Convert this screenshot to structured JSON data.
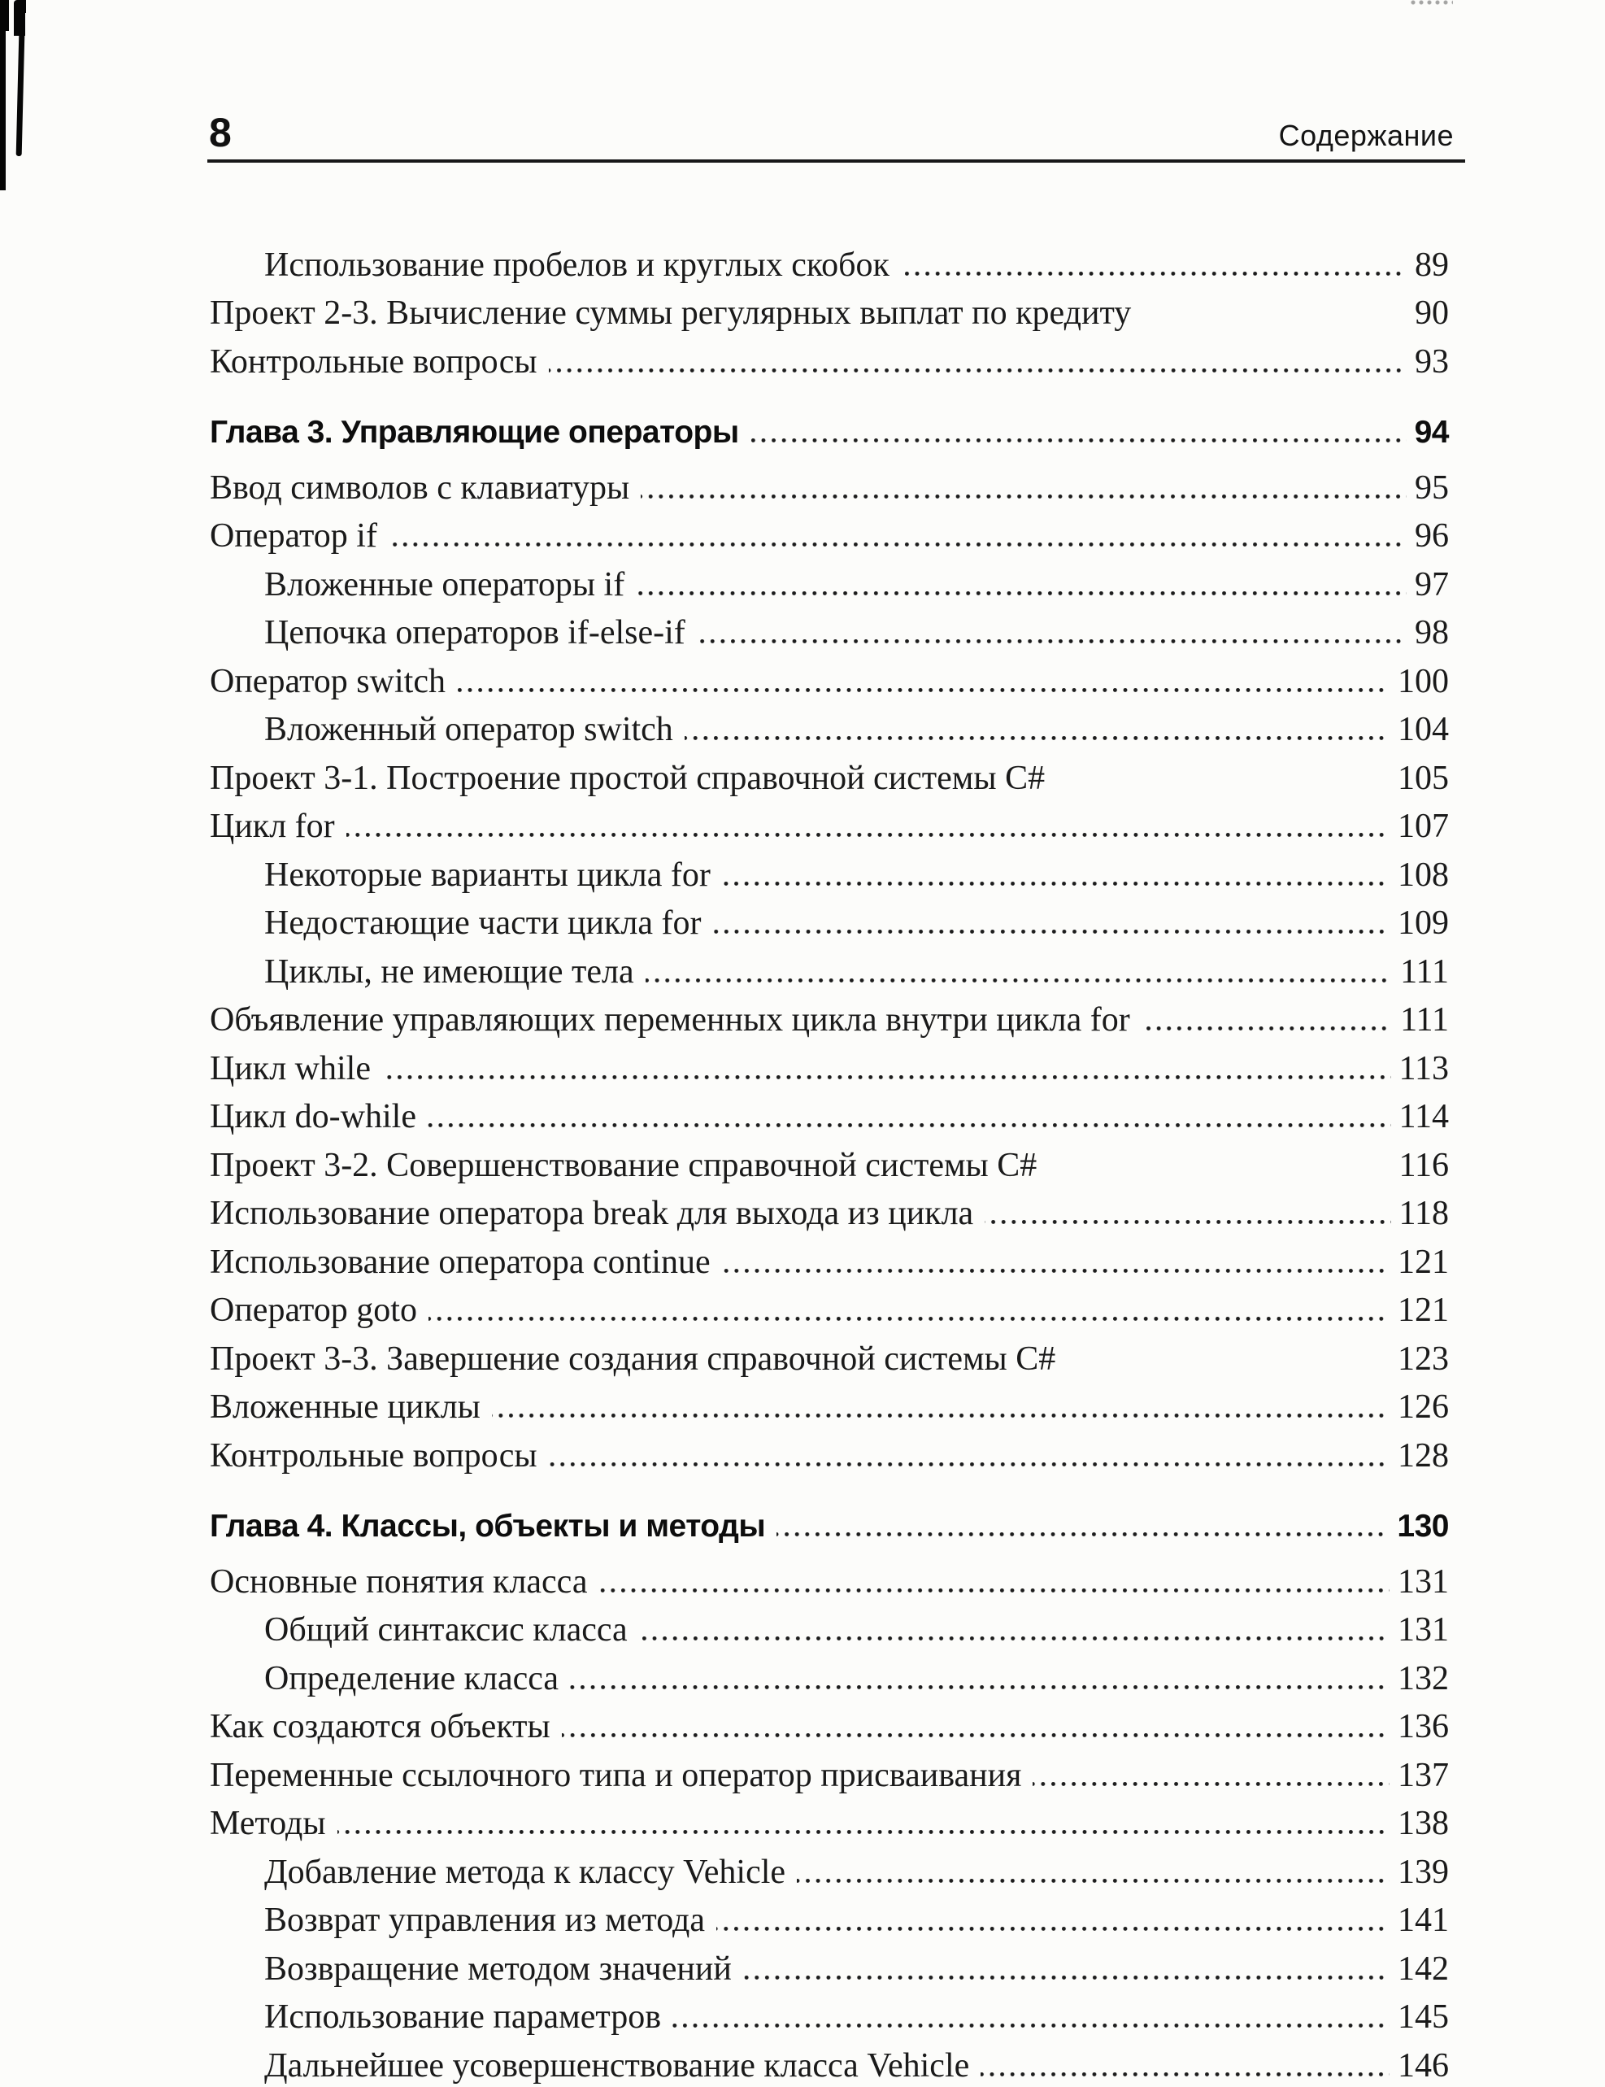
{
  "header": {
    "page_number": "8",
    "running_title": "Содержание"
  },
  "toc": {
    "entries": [
      {
        "label": "Использование пробелов и круглых скобок",
        "page": "89",
        "level": 2,
        "chapter": false,
        "leader": true
      },
      {
        "label": "Проект 2-3. Вычисление суммы регулярных выплат по кредиту",
        "page": "90",
        "level": 1,
        "chapter": false,
        "leader": false
      },
      {
        "label": "Контрольные вопросы",
        "page": "93",
        "level": 1,
        "chapter": false,
        "leader": true
      },
      {
        "label": "Глава 3. Управляющие операторы",
        "page": "94",
        "level": 1,
        "chapter": true,
        "leader": true
      },
      {
        "label": "Ввод символов с клавиатуры",
        "page": "95",
        "level": 1,
        "chapter": false,
        "leader": true
      },
      {
        "label": "Оператор if",
        "page": "96",
        "level": 1,
        "chapter": false,
        "leader": true
      },
      {
        "label": "Вложенные операторы if",
        "page": "97",
        "level": 2,
        "chapter": false,
        "leader": true
      },
      {
        "label": "Цепочка операторов if-else-if",
        "page": "98",
        "level": 2,
        "chapter": false,
        "leader": true
      },
      {
        "label": "Оператор switch",
        "page": "100",
        "level": 1,
        "chapter": false,
        "leader": true
      },
      {
        "label": "Вложенный оператор switch",
        "page": "104",
        "level": 2,
        "chapter": false,
        "leader": true
      },
      {
        "label": "Проект 3-1. Построение простой справочной системы C#",
        "page": "105",
        "level": 1,
        "chapter": false,
        "leader": false
      },
      {
        "label": "Цикл for",
        "page": "107",
        "level": 1,
        "chapter": false,
        "leader": true
      },
      {
        "label": "Некоторые варианты цикла for",
        "page": "108",
        "level": 2,
        "chapter": false,
        "leader": true
      },
      {
        "label": "Недостающие части цикла for",
        "page": "109",
        "level": 2,
        "chapter": false,
        "leader": true
      },
      {
        "label": "Циклы, не имеющие тела",
        "page": "111",
        "level": 2,
        "chapter": false,
        "leader": true
      },
      {
        "label": "Объявление управляющих переменных цикла внутри цикла for",
        "page": "111",
        "level": 1,
        "chapter": false,
        "leader": true
      },
      {
        "label": "Цикл while",
        "page": "113",
        "level": 1,
        "chapter": false,
        "leader": true
      },
      {
        "label": "Цикл do-while",
        "page": "114",
        "level": 1,
        "chapter": false,
        "leader": true
      },
      {
        "label": "Проект 3-2. Совершенствование справочной системы C#",
        "page": "116",
        "level": 1,
        "chapter": false,
        "leader": false
      },
      {
        "label": "Использование оператора break для выхода из цикла",
        "page": "118",
        "level": 1,
        "chapter": false,
        "leader": true
      },
      {
        "label": "Использование оператора continue",
        "page": "121",
        "level": 1,
        "chapter": false,
        "leader": true
      },
      {
        "label": "Оператор goto",
        "page": "121",
        "level": 1,
        "chapter": false,
        "leader": true
      },
      {
        "label": "Проект 3-3. Завершение создания справочной системы C#",
        "page": "123",
        "level": 1,
        "chapter": false,
        "leader": false
      },
      {
        "label": "Вложенные циклы",
        "page": "126",
        "level": 1,
        "chapter": false,
        "leader": true
      },
      {
        "label": "Контрольные вопросы",
        "page": "128",
        "level": 1,
        "chapter": false,
        "leader": true
      },
      {
        "label": "Глава 4. Классы, объекты и методы",
        "page": "130",
        "level": 1,
        "chapter": true,
        "leader": true
      },
      {
        "label": "Основные понятия класса",
        "page": "131",
        "level": 1,
        "chapter": false,
        "leader": true
      },
      {
        "label": "Общий синтаксис класса",
        "page": "131",
        "level": 2,
        "chapter": false,
        "leader": true
      },
      {
        "label": "Определение класса",
        "page": "132",
        "level": 2,
        "chapter": false,
        "leader": true
      },
      {
        "label": "Как создаются объекты",
        "page": "136",
        "level": 1,
        "chapter": false,
        "leader": true
      },
      {
        "label": "Переменные ссылочного типа и оператор присваивания",
        "page": "137",
        "level": 1,
        "chapter": false,
        "leader": true
      },
      {
        "label": "Методы",
        "page": "138",
        "level": 1,
        "chapter": false,
        "leader": true
      },
      {
        "label": "Добавление метода к классу Vehicle",
        "page": "139",
        "level": 2,
        "chapter": false,
        "leader": true
      },
      {
        "label": "Возврат управления из метода",
        "page": "141",
        "level": 2,
        "chapter": false,
        "leader": true
      },
      {
        "label": "Возвращение методом значений",
        "page": "142",
        "level": 2,
        "chapter": false,
        "leader": true
      },
      {
        "label": "Использование параметров",
        "page": "145",
        "level": 2,
        "chapter": false,
        "leader": true
      },
      {
        "label": "Дальнейшее усовершенствование класса Vehicle",
        "page": "146",
        "level": 2,
        "chapter": false,
        "leader": true
      }
    ]
  },
  "colors": {
    "ink": "#1a1a1a",
    "paper": "#fcfcfa",
    "rule": "#181818"
  }
}
